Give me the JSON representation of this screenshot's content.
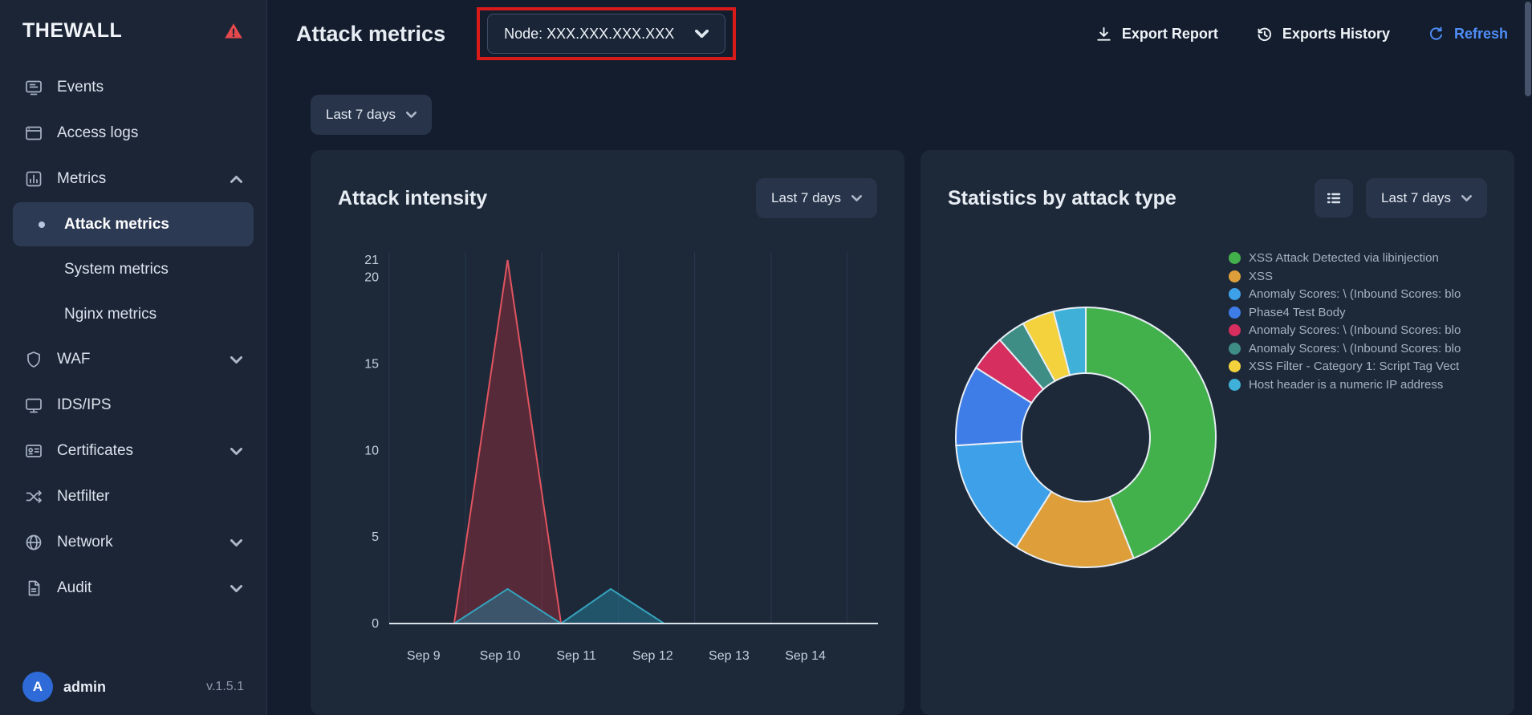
{
  "app": {
    "name": "THEWALL",
    "user": "admin",
    "user_initial": "A",
    "version": "v.1.5.1"
  },
  "colors": {
    "accent_blue": "#4f8ef7",
    "alert_red": "#e5484d",
    "annotation_red": "#d81a1a"
  },
  "sidebar": {
    "items": [
      {
        "label": "Events",
        "icon": "events-icon"
      },
      {
        "label": "Access logs",
        "icon": "access-logs-icon"
      },
      {
        "label": "Metrics",
        "icon": "metrics-icon",
        "expanded": true
      },
      {
        "label": "WAF",
        "icon": "shield-icon",
        "collapsible": true
      },
      {
        "label": "IDS/IPS",
        "icon": "ids-ips-icon"
      },
      {
        "label": "Certificates",
        "icon": "certificates-icon",
        "collapsible": true
      },
      {
        "label": "Netfilter",
        "icon": "netfilter-icon"
      },
      {
        "label": "Network",
        "icon": "network-icon",
        "collapsible": true
      },
      {
        "label": "Audit",
        "icon": "audit-icon",
        "collapsible": true
      }
    ],
    "metrics_children": [
      {
        "label": "Attack metrics",
        "selected": true
      },
      {
        "label": "System metrics",
        "selected": false
      },
      {
        "label": "Nginx metrics",
        "selected": false
      }
    ]
  },
  "header": {
    "title": "Attack metrics",
    "node_selector": {
      "value": "Node: XXX.XXX.XXX.XXX"
    },
    "actions": {
      "export_report": "Export Report",
      "exports_history": "Exports History",
      "refresh": "Refresh"
    }
  },
  "toolbar": {
    "range_filter": "Last 7 days"
  },
  "cards": {
    "attack_intensity": {
      "title": "Attack intensity",
      "range_filter": "Last 7 days"
    },
    "stats_by_type": {
      "title": "Statistics by attack type",
      "range_filter": "Last 7 days"
    }
  },
  "chart_data": [
    {
      "type": "area",
      "title": "Attack intensity",
      "x_tick_labels": [
        "Sep 9",
        "Sep 10",
        "Sep 11",
        "Sep 12",
        "Sep 13",
        "Sep 14"
      ],
      "x_tick_positions": [
        0,
        1,
        2,
        3,
        4,
        5
      ],
      "x_range": [
        -0.45,
        5.95
      ],
      "y_ticks": [
        0,
        5,
        10,
        15,
        20,
        21
      ],
      "y_range": [
        0,
        21
      ],
      "grid": "vertical",
      "grid_x": [
        -0.45,
        0.55,
        1.55,
        2.55,
        3.55,
        4.55,
        5.55
      ],
      "series": [
        {
          "name": "series-red",
          "stroke": "#e0545f",
          "fill": "rgba(170,45,60,0.42)",
          "points": [
            [
              -0.45,
              0
            ],
            [
              0.4,
              0
            ],
            [
              1.1,
              21
            ],
            [
              1.8,
              0
            ],
            [
              5.95,
              0
            ]
          ]
        },
        {
          "name": "series-teal",
          "stroke": "#35a3bd",
          "fill": "rgba(38,120,145,0.55)",
          "points": [
            [
              -0.45,
              0
            ],
            [
              0.4,
              0
            ],
            [
              1.1,
              2
            ],
            [
              1.8,
              0
            ],
            [
              2.45,
              2
            ],
            [
              3.15,
              0
            ],
            [
              5.95,
              0
            ]
          ]
        }
      ]
    },
    {
      "type": "donut",
      "title": "Statistics by attack type",
      "legend_position": "right",
      "slices": [
        {
          "label": "XSS Attack Detected via libinjection",
          "color": "#43b14b",
          "value": 44
        },
        {
          "label": "XSS",
          "color": "#de9f3a",
          "value": 15
        },
        {
          "label": "Anomaly Scores: \\ (Inbound Scores: blo",
          "color": "#3da0e8",
          "value": 15
        },
        {
          "label": "Phase4 Test Body",
          "color": "#3e7ce8",
          "value": 10
        },
        {
          "label": "Anomaly Scores: \\ (Inbound Scores: blo",
          "color": "#d62e5e",
          "value": 4.5
        },
        {
          "label": "Anomaly Scores: \\ (Inbound Scores: blo",
          "color": "#3e8e85",
          "value": 3.5
        },
        {
          "label": "XSS Filter - Category 1: Script Tag Vect",
          "color": "#f4d23d",
          "value": 4
        },
        {
          "label": "Host header is a numeric IP address",
          "color": "#3fb1d8",
          "value": 4
        }
      ]
    }
  ]
}
